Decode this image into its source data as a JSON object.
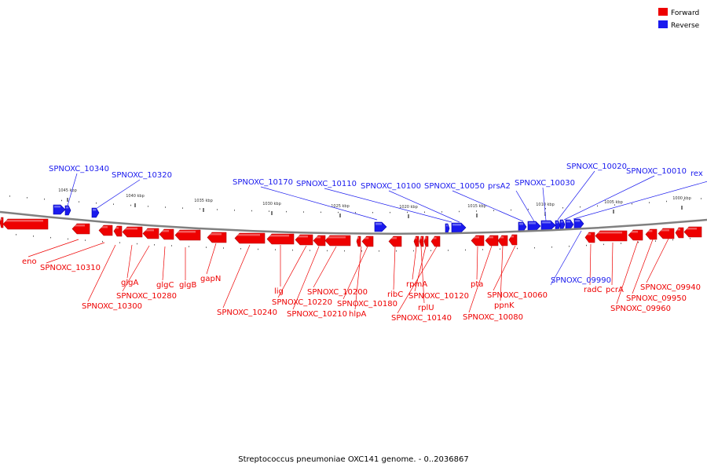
{
  "legend": {
    "forward_label": "Forward",
    "reverse_label": "Reverse",
    "forward_color": "#ee0000",
    "reverse_color": "#1a1aee"
  },
  "caption": "Streptococcus pneumoniae OXC141 genome. - 0..2036867",
  "ruler": [
    {
      "label": "1045 kbp"
    },
    {
      "label": "1040 kbp"
    },
    {
      "label": "1035 kbp"
    },
    {
      "label": "1030 kbp"
    },
    {
      "label": "1025 kbp"
    },
    {
      "label": "1020 kbp"
    },
    {
      "label": "1015 kbp"
    },
    {
      "label": "1010 kbp"
    },
    {
      "label": "1005 kbp"
    },
    {
      "label": "1000 kbp"
    }
  ],
  "reverse_genes": [
    "SPNOXC_10340",
    "SPNOXC_10320",
    "SPNOXC_10170",
    "SPNOXC_10110",
    "SPNOXC_10100",
    "SPNOXC_10050",
    "prsA2",
    "SPNOXC_10030",
    "SPNOXC_10020",
    "SPNOXC_10010",
    "rex",
    "SPNOXC_09990"
  ],
  "forward_genes": [
    "eno",
    "SPNOXC_10310",
    "SPNOXC_10300",
    "glgA",
    "SPNOXC_10280",
    "glgC",
    "glgB",
    "gapN",
    "SPNOXC_10240",
    "lig",
    "SPNOXC_10220",
    "SPNOXC_10210",
    "SPNOXC_10200",
    "hlpA",
    "SPNOXC_10180",
    "ribC",
    "rpmA",
    "rplU",
    "SPNOXC_10120",
    "SPNOXC_10140",
    "pta",
    "SPNOXC_10080",
    "ppnK",
    "SPNOXC_10060",
    "radC",
    "pcrA",
    "SPNOXC_09960",
    "SPNOXC_09950",
    "SPNOXC_09940"
  ]
}
